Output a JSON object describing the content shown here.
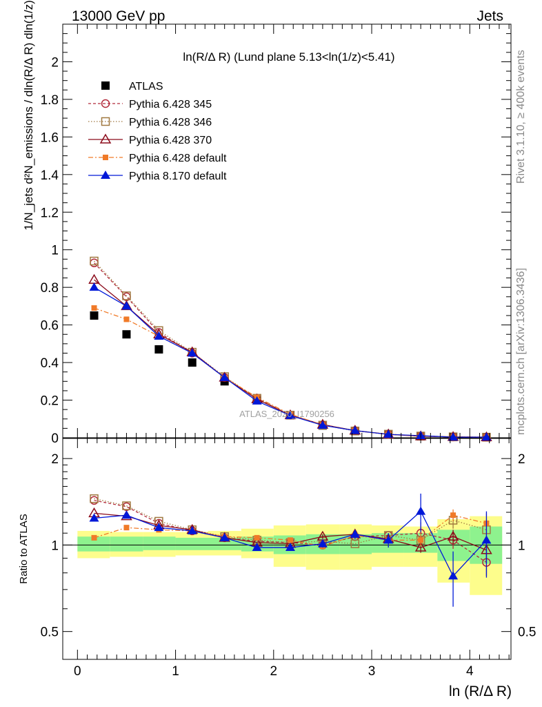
{
  "header": {
    "left": "13000 GeV pp",
    "right": "Jets"
  },
  "side_labels": {
    "rivet": "Rivet 3.1.10, ≥ 400k events",
    "mcplots": "mcplots.cern.ch [arXiv:1306.3436]"
  },
  "watermark": "ATLAS_2020_I1790256",
  "chart_data": [
    {
      "type": "line",
      "panel": "main",
      "title": "ln(R/Δ R) (Lund plane 5.13<ln(1/z)<5.41)",
      "ylabel": "1/N_jets d²N_emissions / dln(R/Δ R) dln(1/z)",
      "xlabel": "",
      "xlim": [
        -0.15,
        4.42
      ],
      "ylim": [
        0,
        2.2
      ],
      "yticks": [
        0,
        0.2,
        0.4,
        0.6,
        0.8,
        1,
        1.2,
        1.4,
        1.6,
        1.8,
        2
      ],
      "ytick_labels": [
        "0",
        "0.2",
        "0.4",
        "0.6",
        "0.8",
        "1",
        "1.2",
        "1.4",
        "1.6",
        "1.8",
        "2"
      ],
      "legend_position": "top-left",
      "x": [
        0.17,
        0.5,
        0.83,
        1.17,
        1.5,
        1.83,
        2.17,
        2.5,
        2.83,
        3.17,
        3.5,
        3.83,
        4.17
      ],
      "series": [
        {
          "name": "ATLAS",
          "color": "#000000",
          "style": "marker",
          "marker": "square-filled",
          "values": [
            0.65,
            0.55,
            0.47,
            0.4,
            0.3,
            0.2,
            0.12,
            0.065,
            0.035,
            0.017,
            0.008,
            0.004,
            0.003
          ]
        },
        {
          "name": "Pythia 6.428 345",
          "color": "#b22a3a",
          "style": "dashed",
          "marker": "circle-open",
          "values": [
            0.93,
            0.75,
            0.56,
            0.45,
            0.32,
            0.21,
            0.12,
            0.068,
            0.038,
            0.018,
            0.009,
            0.004,
            0.0026
          ]
        },
        {
          "name": "Pythia 6.428 346",
          "color": "#a07840",
          "style": "dotted",
          "marker": "square-open",
          "values": [
            0.94,
            0.755,
            0.57,
            0.455,
            0.325,
            0.21,
            0.12,
            0.067,
            0.036,
            0.019,
            0.009,
            0.005,
            0.003
          ]
        },
        {
          "name": "Pythia 6.428 370",
          "color": "#8b0a1a",
          "style": "solid",
          "marker": "triangle-open",
          "values": [
            0.84,
            0.7,
            0.55,
            0.455,
            0.32,
            0.205,
            0.12,
            0.07,
            0.038,
            0.018,
            0.008,
            0.0045,
            0.0029
          ]
        },
        {
          "name": "Pythia 6.428 default",
          "color": "#f07a28",
          "style": "dashdot",
          "marker": "square-filled-small",
          "values": [
            0.69,
            0.63,
            0.54,
            0.45,
            0.32,
            0.215,
            0.125,
            0.068,
            0.038,
            0.019,
            0.009,
            0.005,
            0.0036
          ]
        },
        {
          "name": "Pythia 8.170 default",
          "color": "#0018d8",
          "style": "solid",
          "marker": "triangle-filled",
          "values": [
            0.8,
            0.7,
            0.54,
            0.45,
            0.32,
            0.195,
            0.118,
            0.066,
            0.038,
            0.018,
            0.011,
            0.0031,
            0.0032
          ]
        }
      ]
    },
    {
      "type": "line",
      "panel": "ratio",
      "ylabel": "Ratio to ATLAS",
      "xlabel": "ln (R/Δ R)",
      "xlim": [
        -0.15,
        4.42
      ],
      "ylim": [
        0.4,
        2.35
      ],
      "scale": "log",
      "yticks": [
        0.5,
        1,
        2
      ],
      "ytick_labels": [
        "0.5",
        "1",
        "2"
      ],
      "xticks": [
        0,
        1,
        2,
        3,
        4
      ],
      "xtick_labels": [
        "0",
        "1",
        "2",
        "3",
        "4"
      ],
      "x": [
        0.17,
        0.5,
        0.83,
        1.17,
        1.5,
        1.83,
        2.17,
        2.5,
        2.83,
        3.17,
        3.5,
        3.83,
        4.17
      ],
      "bin_edges": [
        0,
        0.33,
        0.67,
        1.0,
        1.33,
        1.67,
        2.0,
        2.33,
        2.67,
        3.0,
        3.33,
        3.67,
        4.0,
        4.33
      ],
      "band_inner": [
        [
          0.95,
          1.07
        ],
        [
          0.95,
          1.07
        ],
        [
          0.96,
          1.07
        ],
        [
          0.96,
          1.06
        ],
        [
          0.96,
          1.06
        ],
        [
          0.95,
          1.07
        ],
        [
          0.93,
          1.08
        ],
        [
          0.93,
          1.09
        ],
        [
          0.93,
          1.09
        ],
        [
          0.94,
          1.1
        ],
        [
          0.94,
          1.1
        ],
        [
          0.88,
          1.13
        ],
        [
          0.86,
          1.16
        ]
      ],
      "band_outer": [
        [
          0.9,
          1.12
        ],
        [
          0.91,
          1.11
        ],
        [
          0.91,
          1.11
        ],
        [
          0.92,
          1.11
        ],
        [
          0.92,
          1.12
        ],
        [
          0.9,
          1.14
        ],
        [
          0.84,
          1.17
        ],
        [
          0.82,
          1.18
        ],
        [
          0.82,
          1.18
        ],
        [
          0.84,
          1.17
        ],
        [
          0.84,
          1.16
        ],
        [
          0.74,
          1.23
        ],
        [
          0.67,
          1.26
        ]
      ],
      "series": [
        {
          "name": "Pythia 6.428 345",
          "color": "#b22a3a",
          "style": "dashed",
          "marker": "circle-open",
          "values": [
            1.43,
            1.36,
            1.19,
            1.12,
            1.06,
            1.03,
            1.02,
            1.0,
            1.07,
            1.08,
            1.1,
            1.04,
            0.87
          ],
          "err": [
            0,
            0,
            0,
            0,
            0,
            0,
            0,
            0,
            0,
            0,
            0.1,
            0.07,
            0.09
          ]
        },
        {
          "name": "Pythia 6.428 346",
          "color": "#a07840",
          "style": "dotted",
          "marker": "square-open",
          "values": [
            1.45,
            1.37,
            1.21,
            1.13,
            1.07,
            1.04,
            1.02,
            1.03,
            1.01,
            1.08,
            1.04,
            1.22,
            1.13
          ],
          "err": [
            0,
            0,
            0,
            0,
            0,
            0,
            0,
            0,
            0,
            0,
            0.06,
            0.08,
            0.1
          ]
        },
        {
          "name": "Pythia 6.428 370",
          "color": "#8b0a1a",
          "style": "solid",
          "marker": "triangle-open",
          "values": [
            1.29,
            1.26,
            1.17,
            1.13,
            1.06,
            1.02,
            1.01,
            1.07,
            1.09,
            1.05,
            0.98,
            1.07,
            0.96
          ],
          "err": [
            0,
            0,
            0,
            0,
            0,
            0,
            0,
            0.02,
            0.02,
            0.03,
            0.04,
            0.06,
            0.08
          ]
        },
        {
          "name": "Pythia 6.428 default",
          "color": "#f07a28",
          "style": "dashdot",
          "marker": "square-filled-small",
          "values": [
            1.06,
            1.15,
            1.13,
            1.12,
            1.07,
            1.06,
            1.04,
            0.99,
            1.08,
            1.04,
            1.04,
            1.27,
            1.19
          ],
          "err": [
            0,
            0,
            0,
            0,
            0,
            0,
            0,
            0.02,
            0.02,
            0.04,
            0.05,
            0.06,
            0.1
          ]
        },
        {
          "name": "Pythia 8.170 default",
          "color": "#0018d8",
          "style": "solid",
          "marker": "triangle-filled",
          "values": [
            1.24,
            1.27,
            1.15,
            1.12,
            1.06,
            0.98,
            0.98,
            1.01,
            1.09,
            1.04,
            1.31,
            0.78,
            1.04
          ],
          "err": [
            0,
            0,
            0,
            0,
            0,
            0.01,
            0.02,
            0.03,
            0.04,
            0.06,
            0.2,
            0.17,
            0.27
          ]
        }
      ]
    }
  ]
}
